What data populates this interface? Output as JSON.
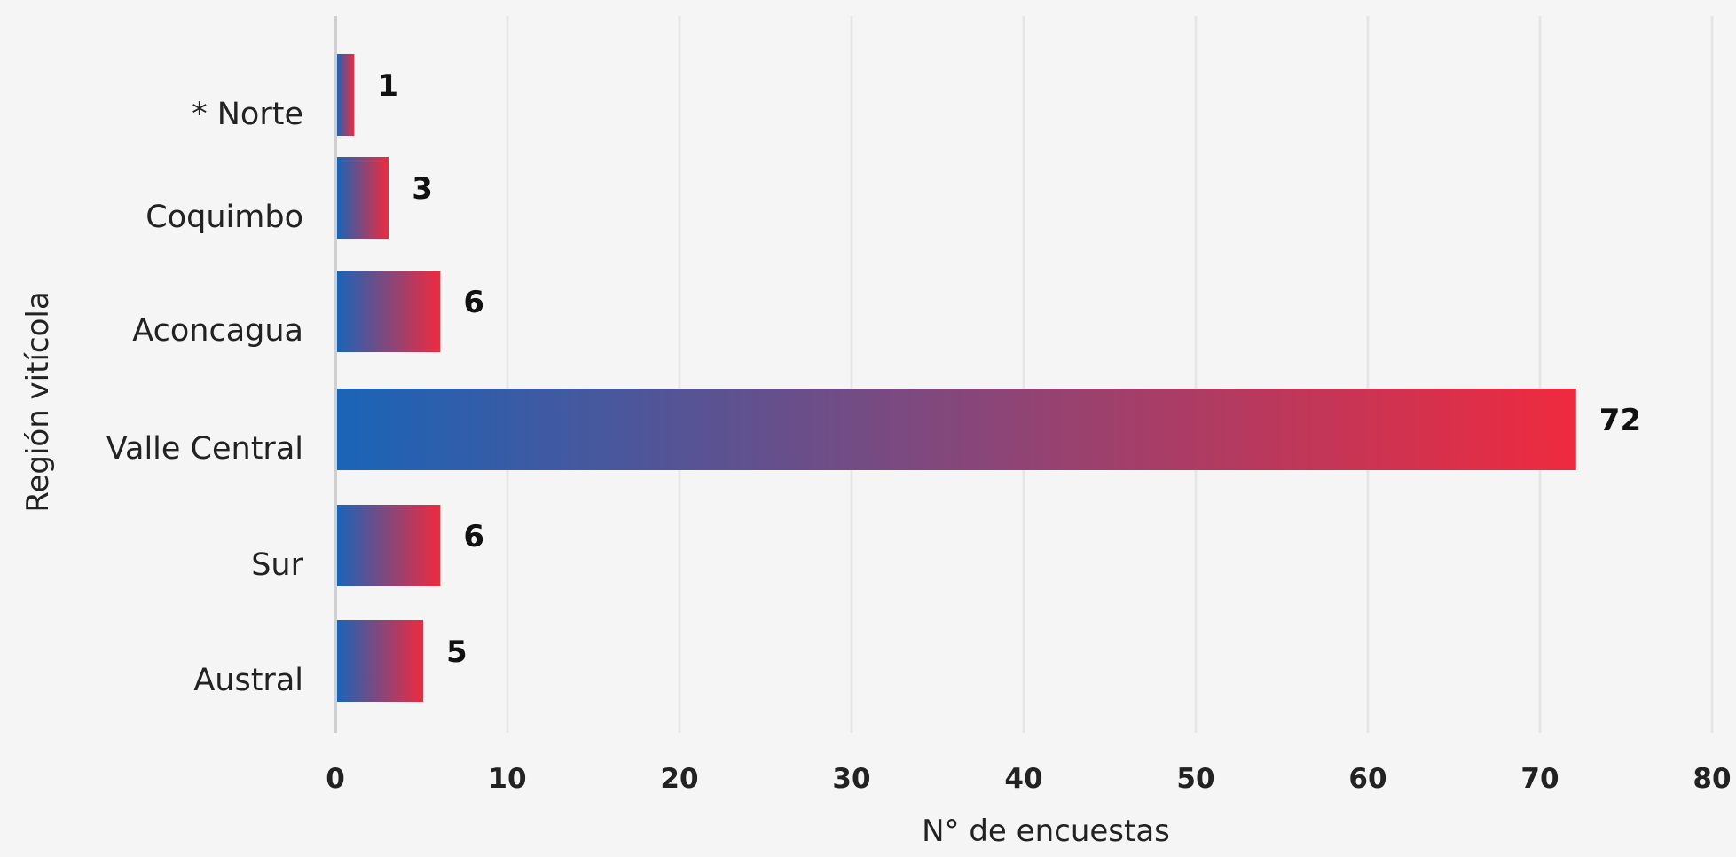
{
  "chart_data": {
    "type": "bar",
    "orientation": "horizontal",
    "categories": [
      "* Norte",
      "Coquimbo",
      "Aconcagua",
      "Valle Central",
      "Sur",
      "Austral"
    ],
    "values": [
      1,
      3,
      6,
      72,
      6,
      5
    ],
    "data_labels": [
      "1",
      "3",
      "6",
      "72",
      "6",
      "5"
    ],
    "xlabel": "N° de encuestas",
    "ylabel": "Región vitícola",
    "xlim": [
      0,
      80
    ],
    "xticks": [
      "0",
      "10",
      "20",
      "30",
      "40",
      "50",
      "60",
      "70",
      "80"
    ],
    "grid": "vertical",
    "legend": "none",
    "gradient": {
      "start": "#1a64b7",
      "end": "#ef2a3e"
    },
    "colors": {
      "background": "#f5f5f5",
      "grid": "#e6e6e6",
      "axis": "#cfcfcf",
      "text": "#222222"
    }
  }
}
